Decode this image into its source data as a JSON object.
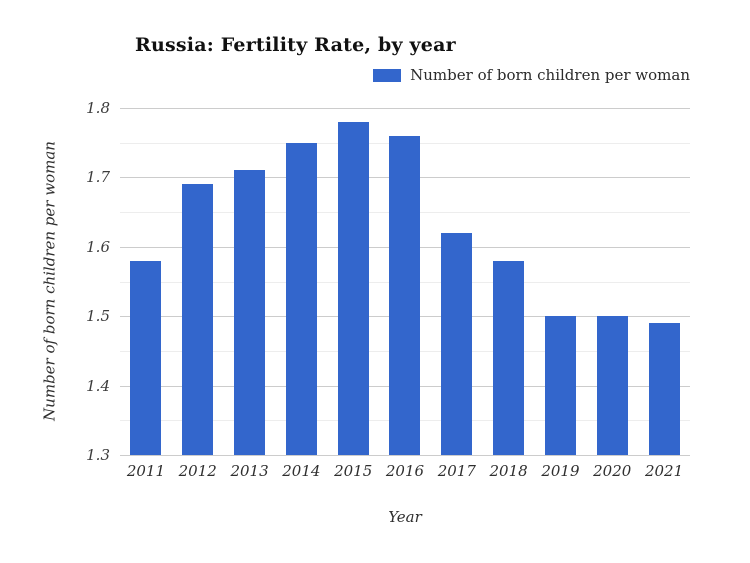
{
  "page": {
    "background": "#ffffff"
  },
  "chart_data": {
    "type": "bar",
    "title": "Russia: Fertility Rate, by year",
    "legend": {
      "label": "Number of born children per woman",
      "position": "top-right",
      "swatch_color": "#3366cc"
    },
    "xlabel": "Year",
    "ylabel": "Number of born children per woman",
    "categories": [
      "2011",
      "2012",
      "2013",
      "2014",
      "2015",
      "2016",
      "2017",
      "2018",
      "2019",
      "2020",
      "2021"
    ],
    "values": [
      1.58,
      1.69,
      1.71,
      1.75,
      1.78,
      1.76,
      1.62,
      1.58,
      1.5,
      1.5,
      1.49
    ],
    "ylim": [
      1.3,
      1.8
    ],
    "ytick_labels": [
      "1.8",
      "1.7",
      "1.6",
      "1.5",
      "1.4",
      "1.3"
    ],
    "yticks": [
      1.8,
      1.7,
      1.6,
      1.5,
      1.4,
      1.3
    ],
    "minor_ticks": [
      1.75,
      1.65,
      1.55,
      1.45,
      1.35
    ],
    "grid": true,
    "colors": {
      "bar": "#3366cc",
      "grid_major": "#cccccc",
      "grid_minor": "#ededed",
      "axis_line": "#cccccc",
      "title_text": "#111111",
      "tick_text": "#3c3c3c",
      "legend_text": "#2b2b2b"
    }
  }
}
